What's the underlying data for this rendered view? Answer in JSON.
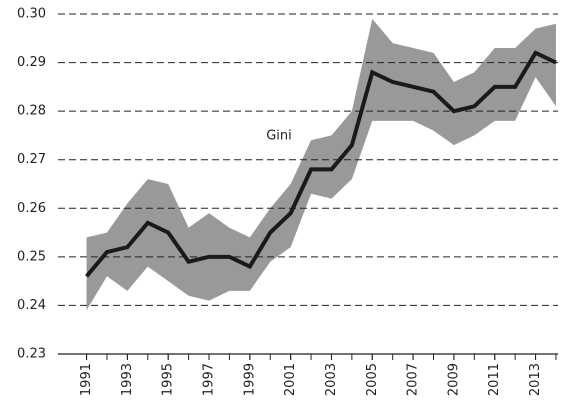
{
  "chart_data": {
    "type": "line",
    "x": [
      1991,
      1992,
      1993,
      1994,
      1995,
      1996,
      1997,
      1998,
      1999,
      2000,
      2001,
      2002,
      2003,
      2004,
      2005,
      2006,
      2007,
      2008,
      2009,
      2010,
      2011,
      2012,
      2013,
      2014
    ],
    "series": [
      {
        "name": "Gini",
        "color": "#1a1a1a",
        "values": [
          0.246,
          0.251,
          0.252,
          0.257,
          0.255,
          0.249,
          0.25,
          0.25,
          0.248,
          0.255,
          0.259,
          0.268,
          0.268,
          0.273,
          0.288,
          0.286,
          0.285,
          0.284,
          0.28,
          0.281,
          0.285,
          0.285,
          0.292,
          0.29
        ]
      }
    ],
    "band": {
      "color": "#999999",
      "upper": [
        0.254,
        0.255,
        0.261,
        0.266,
        0.265,
        0.256,
        0.259,
        0.256,
        0.254,
        0.26,
        0.265,
        0.274,
        0.275,
        0.28,
        0.299,
        0.294,
        0.293,
        0.292,
        0.286,
        0.288,
        0.293,
        0.293,
        0.297,
        0.298
      ],
      "lower": [
        0.239,
        0.246,
        0.243,
        0.248,
        0.245,
        0.242,
        0.241,
        0.243,
        0.243,
        0.249,
        0.252,
        0.263,
        0.262,
        0.266,
        0.278,
        0.278,
        0.278,
        0.276,
        0.273,
        0.275,
        0.278,
        0.278,
        0.287,
        0.281
      ]
    },
    "xlim": [
      1989.6,
      2014.1
    ],
    "xticks": [
      1991,
      1993,
      1995,
      1997,
      1999,
      2001,
      2003,
      2005,
      2007,
      2009,
      2011,
      2013
    ],
    "ylim": [
      0.23,
      0.3
    ],
    "yticks": [
      0.23,
      0.24,
      0.25,
      0.26,
      0.27,
      0.28,
      0.29,
      {
        "value": 0.3,
        "label": "0.30"
      }
    ],
    "grid": true
  }
}
